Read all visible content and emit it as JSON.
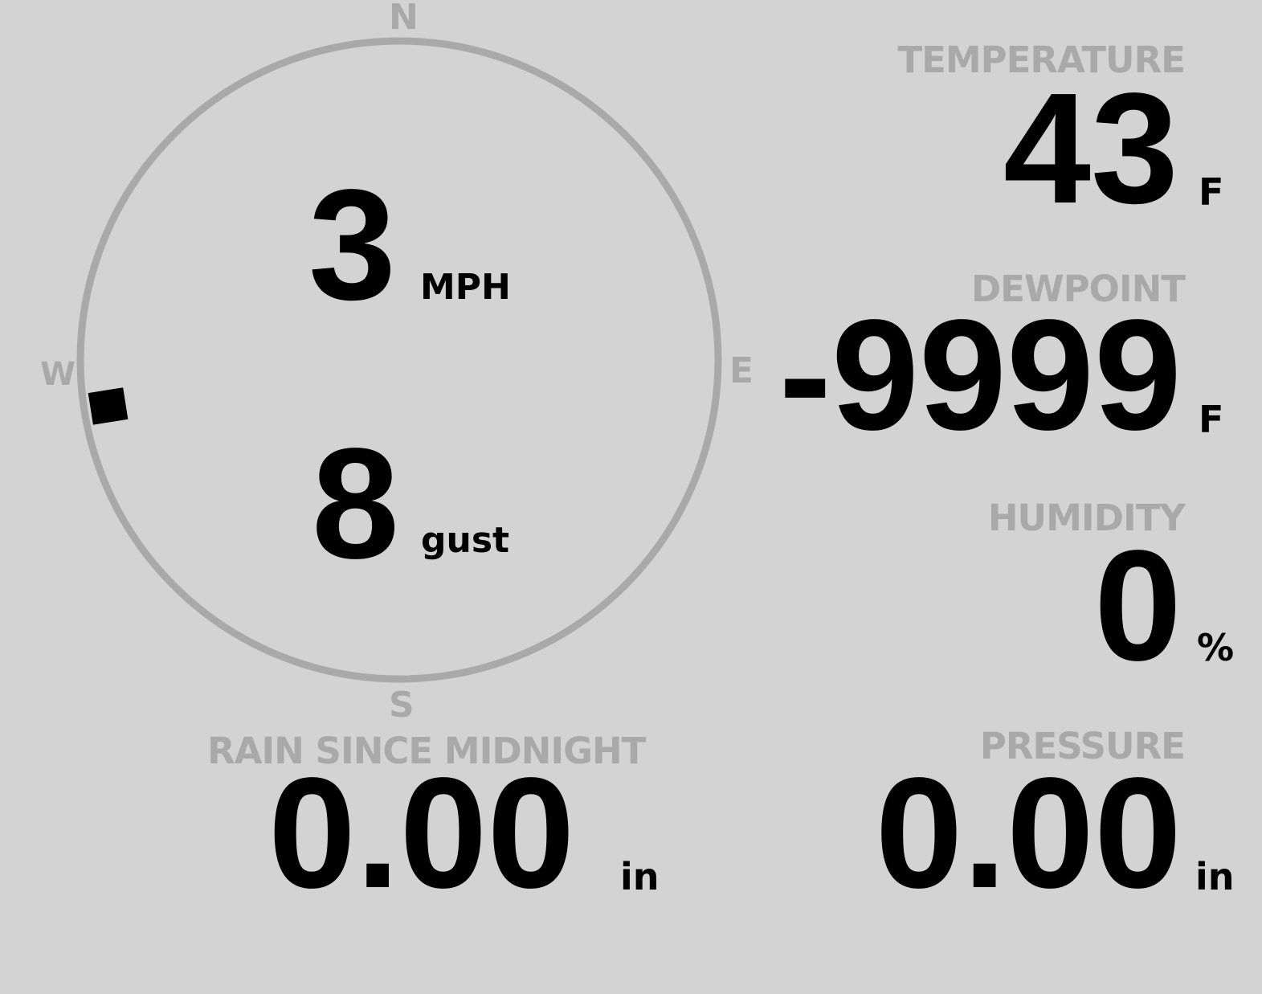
{
  "wind": {
    "compass": {
      "n": "N",
      "e": "E",
      "s": "S",
      "w": "W"
    },
    "speed": "3",
    "speed_unit": "MPH",
    "gust": "8",
    "gust_unit": "gust",
    "direction_deg": 261
  },
  "temperature": {
    "label": "TEMPERATURE",
    "value": "43",
    "unit": "F"
  },
  "dewpoint": {
    "label": "DEWPOINT",
    "value": "-9999",
    "unit": "F"
  },
  "humidity": {
    "label": "HUMIDITY",
    "value": "0",
    "unit": "%"
  },
  "rain": {
    "label": "RAIN SINCE MIDNIGHT",
    "value": "0.00",
    "unit": "in"
  },
  "pressure": {
    "label": "PRESSURE",
    "value": "0.00",
    "unit": "in"
  },
  "colors": {
    "background": "#d3d3d3",
    "label": "#a9a9a9",
    "value": "#000000"
  }
}
